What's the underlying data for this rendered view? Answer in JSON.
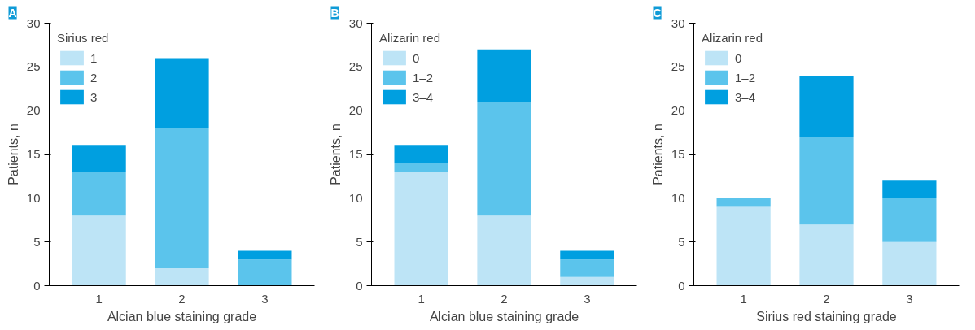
{
  "chart_data": [
    {
      "type": "bar",
      "title": "A",
      "stacked": true,
      "categories": [
        "1",
        "2",
        "3"
      ],
      "xlabel": "Alcian blue staining grade",
      "ylabel": "Patients, n",
      "legend_title": "Sirius red",
      "legend": "top left",
      "ylim": [
        0,
        30
      ],
      "yticks": [
        0,
        5,
        10,
        15,
        20,
        25,
        30
      ],
      "grid": false,
      "series": [
        {
          "name": "1",
          "color": "#bde4f6",
          "values": [
            8,
            2,
            0
          ]
        },
        {
          "name": "2",
          "color": "#5bc4ec",
          "values": [
            5,
            16,
            3
          ]
        },
        {
          "name": "3",
          "color": "#009fe0",
          "values": [
            3,
            8,
            1
          ]
        }
      ]
    },
    {
      "type": "bar",
      "title": "B",
      "stacked": true,
      "categories": [
        "1",
        "2",
        "3"
      ],
      "xlabel": "Alcian blue staining grade",
      "ylabel": "Patients, n",
      "legend_title": "Alizarin red",
      "legend": "top left",
      "ylim": [
        0,
        30
      ],
      "yticks": [
        0,
        5,
        10,
        15,
        20,
        25,
        30
      ],
      "grid": false,
      "series": [
        {
          "name": "0",
          "color": "#bde4f6",
          "values": [
            13,
            8,
            1
          ]
        },
        {
          "name": "1–2",
          "color": "#5bc4ec",
          "values": [
            1,
            13,
            2
          ]
        },
        {
          "name": "3–4",
          "color": "#009fe0",
          "values": [
            2,
            6,
            1
          ]
        }
      ]
    },
    {
      "type": "bar",
      "title": "C",
      "stacked": true,
      "categories": [
        "1",
        "2",
        "3"
      ],
      "xlabel": "Sirius red staining grade",
      "ylabel": "Patients, n",
      "legend_title": "Alizarin red",
      "legend": "top left",
      "ylim": [
        0,
        30
      ],
      "yticks": [
        0,
        5,
        10,
        15,
        20,
        25,
        30
      ],
      "grid": false,
      "series": [
        {
          "name": "0",
          "color": "#bde4f6",
          "values": [
            9,
            7,
            5
          ]
        },
        {
          "name": "1–2",
          "color": "#5bc4ec",
          "values": [
            1,
            10,
            5
          ]
        },
        {
          "name": "3–4",
          "color": "#009fe0",
          "values": [
            0,
            7,
            2
          ]
        }
      ]
    }
  ]
}
